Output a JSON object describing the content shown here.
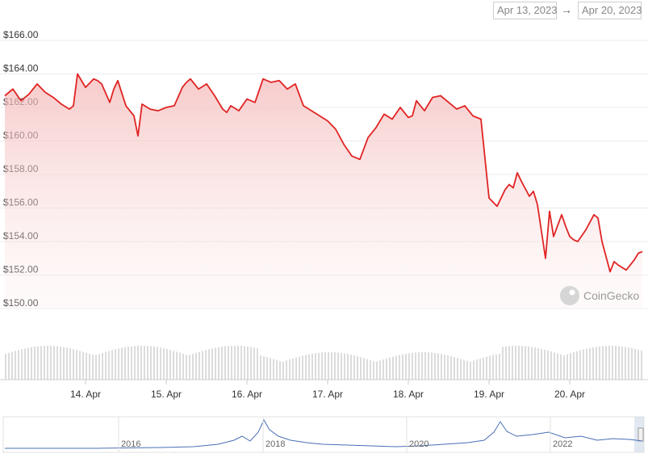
{
  "range": {
    "from": "Apr 13, 2023",
    "arrow": "→",
    "to": "Apr 20, 2023"
  },
  "watermark": "CoinGecko",
  "colors": {
    "line": "#e02424",
    "fill": "#f8d0d0",
    "grid": "#ececec",
    "volume": "#dcdcdc",
    "navigator": "#4a6fb5"
  },
  "chart_data": {
    "type": "line",
    "ylabel": "",
    "xlabel": "",
    "ylim": [
      150,
      166
    ],
    "y_ticks": [
      "$150.00",
      "$152.00",
      "$154.00",
      "$156.00",
      "$158.00",
      "$160.00",
      "$162.00",
      "$164.00",
      "$166.00"
    ],
    "x_ticks": [
      "14. Apr",
      "15. Apr",
      "16. Apr",
      "17. Apr",
      "18. Apr",
      "19. Apr",
      "20. Apr"
    ],
    "x_range_days": [
      13.0,
      20.9
    ],
    "grid": true,
    "series": [
      {
        "x": [
          13.0,
          13.1,
          13.2,
          13.3,
          13.4,
          13.5,
          13.6,
          13.7,
          13.8,
          13.85,
          13.9,
          14.0,
          14.1,
          14.15,
          14.2,
          14.3,
          14.35,
          14.4,
          14.5,
          14.6,
          14.65,
          14.7,
          14.8,
          14.9,
          15.0,
          15.1,
          15.2,
          15.25,
          15.3,
          15.4,
          15.5,
          15.6,
          15.7,
          15.75,
          15.8,
          15.9,
          16.0,
          16.1,
          16.2,
          16.3,
          16.4,
          16.5,
          16.6,
          16.7,
          16.8,
          16.9,
          17.0,
          17.1,
          17.2,
          17.3,
          17.4,
          17.5,
          17.6,
          17.7,
          17.8,
          17.9,
          18.0,
          18.05,
          18.1,
          18.2,
          18.3,
          18.4,
          18.5,
          18.6,
          18.7,
          18.8,
          18.9,
          19.0,
          19.1,
          19.2,
          19.25,
          19.3,
          19.35,
          19.4,
          19.5,
          19.55,
          19.6,
          19.7,
          19.75,
          19.8,
          19.9,
          19.95,
          20.0,
          20.05,
          20.1,
          20.2,
          20.3,
          20.35,
          20.4,
          20.5,
          20.55,
          20.6,
          20.7,
          20.75,
          20.8,
          20.85,
          20.9
        ],
        "y": [
          162.7,
          163.1,
          162.4,
          162.8,
          163.4,
          162.9,
          162.6,
          162.2,
          161.9,
          162.1,
          164.0,
          163.2,
          163.7,
          163.6,
          163.4,
          162.3,
          163.1,
          163.6,
          162.1,
          161.5,
          160.3,
          162.2,
          161.9,
          161.8,
          162.0,
          162.1,
          163.2,
          163.5,
          163.7,
          163.1,
          163.4,
          162.7,
          161.9,
          161.7,
          162.1,
          161.8,
          162.5,
          162.3,
          163.7,
          163.5,
          163.6,
          163.1,
          163.4,
          162.1,
          161.8,
          161.5,
          161.2,
          160.7,
          159.8,
          159.1,
          158.9,
          160.2,
          160.8,
          161.6,
          161.3,
          162.0,
          161.4,
          161.5,
          162.4,
          161.8,
          162.6,
          162.7,
          162.3,
          161.9,
          162.1,
          161.5,
          161.3,
          156.6,
          156.1,
          157.1,
          157.4,
          157.2,
          158.1,
          157.6,
          156.7,
          157.0,
          156.2,
          153.0,
          155.8,
          154.3,
          155.6,
          154.9,
          154.3,
          154.1,
          154.0,
          154.7,
          155.6,
          155.4,
          154.0,
          152.2,
          152.8,
          152.6,
          152.3,
          152.6,
          152.9,
          153.3,
          153.4
        ]
      }
    ],
    "navigator": {
      "labels": [
        "2016",
        "2018",
        "2020",
        "2022"
      ]
    }
  }
}
